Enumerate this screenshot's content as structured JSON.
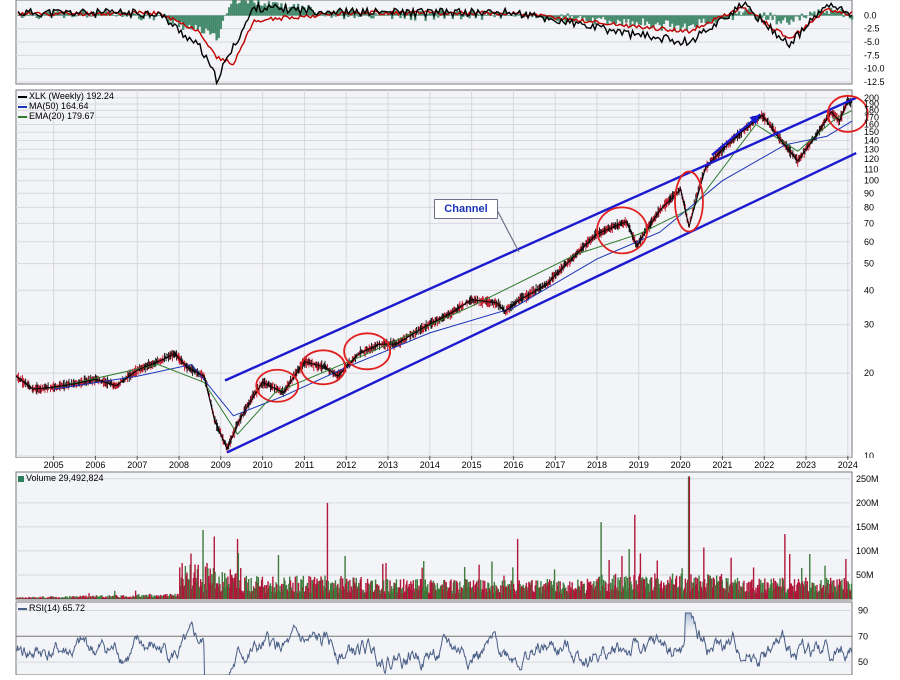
{
  "chart_data": [
    {
      "type": "line",
      "panel": "macd",
      "title": "",
      "y_ticks": [
        "0.0",
        "-2.5",
        "-5.0",
        "-7.5",
        "-10.0",
        "-12.5"
      ],
      "ylim": [
        -12.5,
        2.5
      ],
      "series": [
        {
          "role": "macd-line",
          "color": "#000000"
        },
        {
          "role": "signal-line",
          "color": "#c00000"
        },
        {
          "role": "histogram",
          "color": "#2e7d5b"
        }
      ],
      "points": [
        {
          "x": 2005.0,
          "macd": 0.5,
          "signal": 0.3
        },
        {
          "x": 2007.5,
          "macd": 0.4,
          "signal": 0.4
        },
        {
          "x": 2008.5,
          "macd": -6.0,
          "signal": -3.0
        },
        {
          "x": 2008.9,
          "macd": -12.0,
          "signal": -8.0
        },
        {
          "x": 2009.3,
          "macd": -6.0,
          "signal": -9.0
        },
        {
          "x": 2009.8,
          "macd": 1.5,
          "signal": -1.0
        },
        {
          "x": 2012.0,
          "macd": 0.6,
          "signal": 0.5
        },
        {
          "x": 2016.0,
          "macd": 0.5,
          "signal": 0.4
        },
        {
          "x": 2018.8,
          "macd": -3.5,
          "signal": -2.0
        },
        {
          "x": 2020.2,
          "macd": -5.0,
          "signal": -3.0
        },
        {
          "x": 2021.5,
          "macd": 2.0,
          "signal": 1.5
        },
        {
          "x": 2022.6,
          "macd": -5.5,
          "signal": -4.5
        },
        {
          "x": 2023.5,
          "macd": 2.0,
          "signal": 1.0
        },
        {
          "x": 2024.0,
          "macd": 0.5,
          "signal": 0.4
        }
      ]
    },
    {
      "type": "line",
      "panel": "price",
      "title": "XLK (Weekly) 192.24",
      "scale": "log",
      "ylim": [
        10,
        210
      ],
      "y_ticks": [
        10,
        20,
        30,
        40,
        50,
        60,
        70,
        80,
        90,
        100,
        110,
        120,
        130,
        140,
        150,
        160,
        170,
        180,
        190,
        200
      ],
      "x_ticks": [
        "2005",
        "2006",
        "2007",
        "2008",
        "2009",
        "2010",
        "2011",
        "2012",
        "2013",
        "2014",
        "2015",
        "2016",
        "2017",
        "2018",
        "2019",
        "2020",
        "2021",
        "2022",
        "2023",
        "2024"
      ],
      "xlim": [
        2004.1,
        2024.1
      ],
      "legend": [
        {
          "label": "XLK (Weekly) 192.24",
          "color": "#000000"
        },
        {
          "label": "MA(50) 164.64",
          "color": "#1a35b8"
        },
        {
          "label": "EMA(20) 179.67",
          "color": "#2e7d2e"
        }
      ],
      "price": [
        {
          "x": 2004.1,
          "y": 19.5
        },
        {
          "x": 2004.5,
          "y": 17.5
        },
        {
          "x": 2005.0,
          "y": 17.8
        },
        {
          "x": 2005.5,
          "y": 18.3
        },
        {
          "x": 2006.0,
          "y": 19.0
        },
        {
          "x": 2006.5,
          "y": 18.0
        },
        {
          "x": 2007.0,
          "y": 20.5
        },
        {
          "x": 2007.5,
          "y": 22.0
        },
        {
          "x": 2007.9,
          "y": 23.5
        },
        {
          "x": 2008.2,
          "y": 21.0
        },
        {
          "x": 2008.6,
          "y": 19.5
        },
        {
          "x": 2008.85,
          "y": 13.5
        },
        {
          "x": 2009.15,
          "y": 10.6
        },
        {
          "x": 2009.5,
          "y": 14.0
        },
        {
          "x": 2010.0,
          "y": 18.5
        },
        {
          "x": 2010.5,
          "y": 17.0
        },
        {
          "x": 2011.0,
          "y": 22.0
        },
        {
          "x": 2011.5,
          "y": 21.0
        },
        {
          "x": 2011.8,
          "y": 19.5
        },
        {
          "x": 2012.3,
          "y": 23.5
        },
        {
          "x": 2012.8,
          "y": 25.5
        },
        {
          "x": 2013.2,
          "y": 25.5
        },
        {
          "x": 2013.8,
          "y": 29.0
        },
        {
          "x": 2014.5,
          "y": 33.0
        },
        {
          "x": 2015.0,
          "y": 37.0
        },
        {
          "x": 2015.6,
          "y": 36.0
        },
        {
          "x": 2015.8,
          "y": 33.5
        },
        {
          "x": 2016.1,
          "y": 36.5
        },
        {
          "x": 2016.8,
          "y": 42.0
        },
        {
          "x": 2017.5,
          "y": 54.0
        },
        {
          "x": 2018.0,
          "y": 64.0
        },
        {
          "x": 2018.7,
          "y": 71.0
        },
        {
          "x": 2018.95,
          "y": 58.0
        },
        {
          "x": 2019.5,
          "y": 78.0
        },
        {
          "x": 2020.0,
          "y": 93.0
        },
        {
          "x": 2020.2,
          "y": 68.0
        },
        {
          "x": 2020.6,
          "y": 112.0
        },
        {
          "x": 2021.0,
          "y": 130.0
        },
        {
          "x": 2021.5,
          "y": 152.0
        },
        {
          "x": 2021.95,
          "y": 173.0
        },
        {
          "x": 2022.4,
          "y": 140.0
        },
        {
          "x": 2022.8,
          "y": 118.0
        },
        {
          "x": 2023.3,
          "y": 150.0
        },
        {
          "x": 2023.6,
          "y": 178.0
        },
        {
          "x": 2023.8,
          "y": 165.0
        },
        {
          "x": 2024.0,
          "y": 195.0
        },
        {
          "x": 2024.1,
          "y": 192.24
        }
      ],
      "ma50": [
        {
          "x": 2005.0,
          "y": 17.5
        },
        {
          "x": 2007.0,
          "y": 19.5
        },
        {
          "x": 2008.3,
          "y": 21.5
        },
        {
          "x": 2009.3,
          "y": 14.0
        },
        {
          "x": 2010.5,
          "y": 16.5
        },
        {
          "x": 2012.0,
          "y": 21.0
        },
        {
          "x": 2014.0,
          "y": 28.0
        },
        {
          "x": 2016.0,
          "y": 34.5
        },
        {
          "x": 2018.0,
          "y": 52.0
        },
        {
          "x": 2019.5,
          "y": 65.0
        },
        {
          "x": 2021.0,
          "y": 100.0
        },
        {
          "x": 2022.5,
          "y": 135.0
        },
        {
          "x": 2023.5,
          "y": 145.0
        },
        {
          "x": 2024.1,
          "y": 164.64
        }
      ],
      "ema20": [
        {
          "x": 2005.0,
          "y": 17.7
        },
        {
          "x": 2007.5,
          "y": 21.5
        },
        {
          "x": 2008.6,
          "y": 18.5
        },
        {
          "x": 2009.4,
          "y": 12.0
        },
        {
          "x": 2010.3,
          "y": 17.0
        },
        {
          "x": 2012.5,
          "y": 23.5
        },
        {
          "x": 2015.0,
          "y": 35.0
        },
        {
          "x": 2017.5,
          "y": 54.0
        },
        {
          "x": 2019.0,
          "y": 64.0
        },
        {
          "x": 2020.3,
          "y": 80.0
        },
        {
          "x": 2021.8,
          "y": 160.0
        },
        {
          "x": 2022.8,
          "y": 128.0
        },
        {
          "x": 2023.7,
          "y": 168.0
        },
        {
          "x": 2024.1,
          "y": 179.67
        }
      ],
      "annotations": {
        "label": "Channel",
        "channel_lines": [
          {
            "x1": 2009.1,
            "y1": 18.8,
            "x2": 2024.2,
            "y2": 200
          },
          {
            "x1": 2009.15,
            "y1": 10.3,
            "x2": 2024.2,
            "y2": 126
          }
        ],
        "arrow": {
          "x1": 2020.75,
          "y1": 124,
          "x2": 2021.9,
          "y2": 174
        },
        "circles": [
          {
            "x": 2010.35,
            "y": 18.0
          },
          {
            "x": 2011.45,
            "y": 21.0
          },
          {
            "x": 2012.5,
            "y": 24.0
          },
          {
            "x": 2018.6,
            "y": 66.0
          },
          {
            "x": 2020.2,
            "y": 84.0
          },
          {
            "x": 2024.0,
            "y": 175.0
          }
        ]
      }
    },
    {
      "type": "bar",
      "panel": "volume",
      "title": "Volume 29,492,824",
      "ylim": [
        0,
        260
      ],
      "unit": "M",
      "y_ticks": [
        "250M",
        "200M",
        "150M",
        "100M",
        "50M"
      ],
      "peaks": [
        {
          "x": 2008.85,
          "value": 130
        },
        {
          "x": 2011.55,
          "value": 200
        },
        {
          "x": 2016.1,
          "value": 125
        },
        {
          "x": 2018.1,
          "value": 160
        },
        {
          "x": 2018.9,
          "value": 175
        },
        {
          "x": 2020.2,
          "value": 255
        },
        {
          "x": 2022.5,
          "value": 135
        }
      ]
    },
    {
      "type": "line",
      "panel": "rsi",
      "title": "RSI(14) 65.72",
      "ylim": [
        40,
        95
      ],
      "y_ticks": [
        "90",
        "70",
        "50"
      ],
      "overbought": 70
    }
  ]
}
